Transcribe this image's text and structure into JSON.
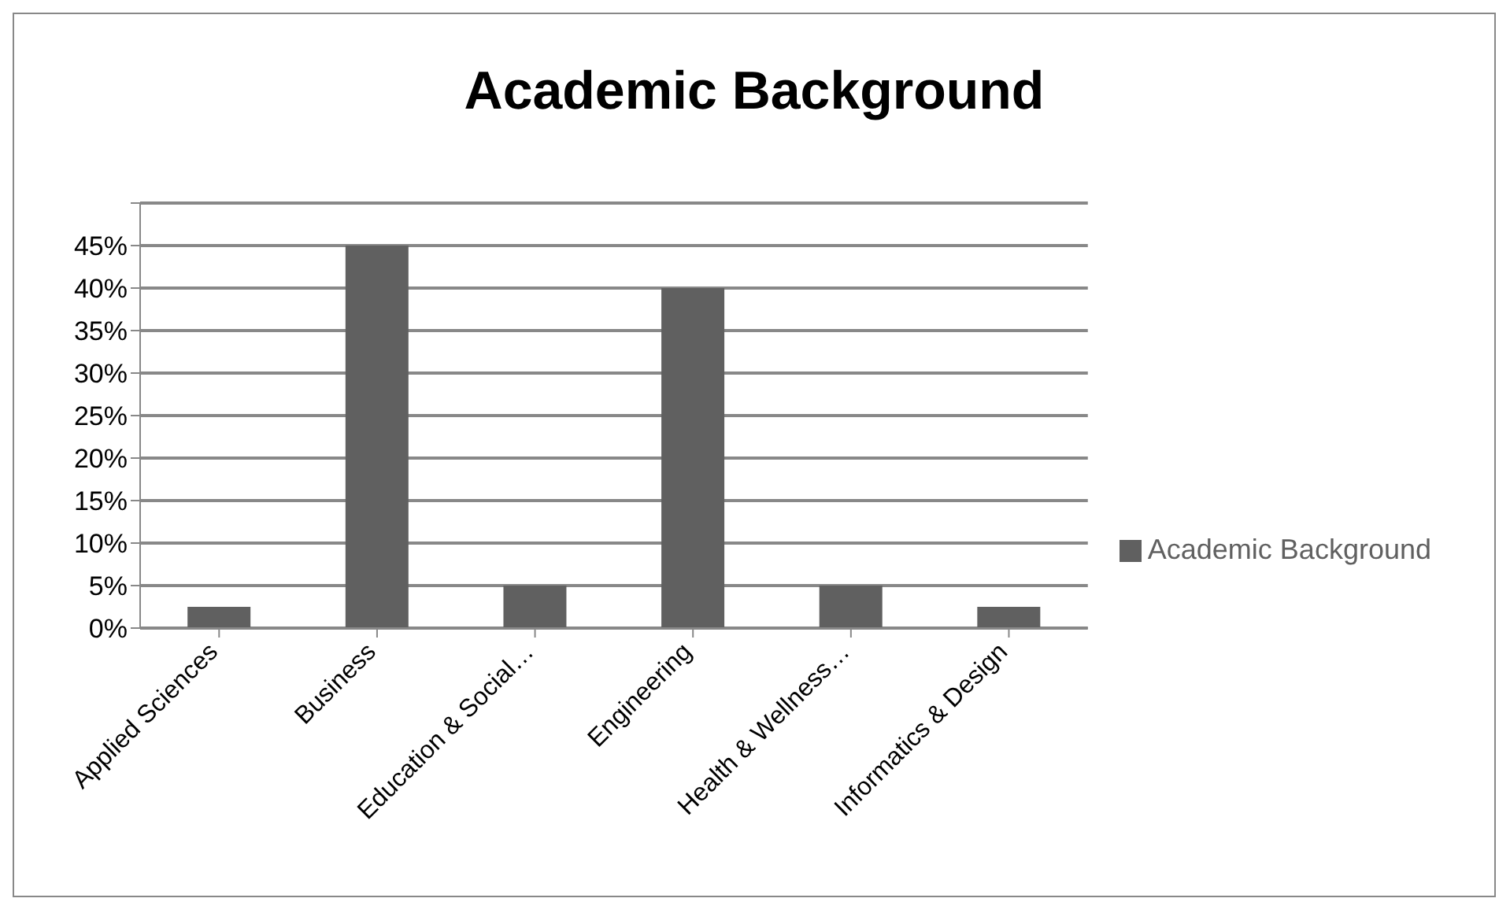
{
  "chart_data": {
    "type": "bar",
    "title": "Academic Background",
    "categories": [
      "Applied Sciences",
      "Business",
      "Education & Social…",
      "Engineering",
      "Health & Wellness…",
      "Informatics & Design"
    ],
    "series": [
      {
        "name": "Academic Background",
        "color": "#606060",
        "values": [
          2.5,
          45,
          5,
          40,
          5,
          2.5
        ]
      }
    ],
    "ylim": [
      0,
      50
    ],
    "yticks": [
      {
        "value": 0,
        "label": "0%"
      },
      {
        "value": 5,
        "label": "5%"
      },
      {
        "value": 10,
        "label": "10%"
      },
      {
        "value": 15,
        "label": "15%"
      },
      {
        "value": 20,
        "label": "20%"
      },
      {
        "value": 25,
        "label": "25%"
      },
      {
        "value": 30,
        "label": "30%"
      },
      {
        "value": 35,
        "label": "35%"
      },
      {
        "value": 40,
        "label": "40%"
      },
      {
        "value": 45,
        "label": "45%"
      },
      {
        "value": 50,
        "label": null
      }
    ],
    "grid": "y",
    "legend": "right"
  }
}
